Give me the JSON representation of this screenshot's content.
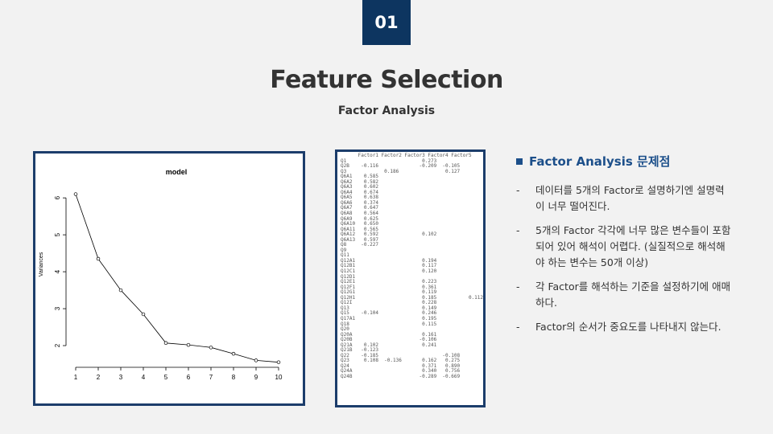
{
  "slide": {
    "number": "01",
    "title": "Feature Selection",
    "subtitle": "Factor Analysis"
  },
  "chart_data": {
    "type": "line",
    "title": "model",
    "xlabel": "",
    "ylabel": "Variances",
    "x": [
      1,
      2,
      3,
      4,
      5,
      6,
      7,
      8,
      9,
      10
    ],
    "values": [
      6.1,
      4.35,
      3.5,
      2.85,
      2.07,
      2.02,
      1.95,
      1.78,
      1.6,
      1.55
    ],
    "xlim": [
      1,
      10
    ],
    "ylim": [
      1.5,
      6.2
    ],
    "xticks": [
      "1",
      "2",
      "3",
      "4",
      "5",
      "6",
      "7",
      "8",
      "9",
      "10"
    ],
    "yticks": [
      "2",
      "3",
      "4",
      "5",
      "6"
    ],
    "grid": false
  },
  "loadings_table": {
    "header": "      Factor1 Factor2 Factor3 Factor4 Factor5",
    "rows": [
      "Q1                          0.273",
      "Q2B    -0.116              -0.209  -0.105",
      "Q3             0.186                0.127",
      "Q6A1    0.585",
      "Q6A2    0.582",
      "Q6A3    0.602",
      "Q6A4    0.674",
      "Q6A5    0.638",
      "Q6A6    0.374",
      "Q6A7    0.647",
      "Q6A8    0.564",
      "Q6A9    0.625",
      "Q6A10   0.650",
      "Q6A11   0.565",
      "Q6A12   0.592               0.102",
      "Q6A13   0.597",
      "Q8     -0.227",
      "Q9",
      "Q11",
      "Q12A1                       0.194",
      "Q12B1                       0.117",
      "Q12C1                       0.120",
      "Q12D1",
      "Q12E1                       0.223",
      "Q12F1                       0.361",
      "Q12G1                       0.119",
      "Q12H1                       0.185           0.112",
      "Q12I                        0.228",
      "Q13                         0.149",
      "Q15    -0.104               0.246",
      "Q17A1                       0.195",
      "Q18                         0.115",
      "Q20",
      "Q20A                        0.161",
      "Q20B                       -0.106",
      "Q21A    0.102               0.241",
      "Q21B   -0.123",
      "Q22    -0.185                      -0.108",
      "Q23     0.108  -0.136       0.162   0.275",
      "Q24                         0.371   0.890",
      "Q24A                        0.340   0.756",
      "Q24B                       -0.289  -0.669"
    ]
  },
  "issues": {
    "heading": "Factor Analysis 문제점",
    "bullet_marker": "-",
    "items": [
      "데이터를 5개의 Factor로 설명하기엔 설명력이 너무 떨어진다.",
      "5개의 Factor 각각에 너무 많은 변수들이 포함되어 있어 해석이 어렵다. (실질적으로 해석해야 하는 변수는 50개 이상)",
      "각 Factor를 해석하는 기준을 설정하기에 애매하다.",
      "Factor의 순서가 중요도를 나타내지 않는다."
    ]
  },
  "colors": {
    "badge": "#0d3560",
    "accent": "#1c4f8a",
    "panel_border": "#1c3d6b"
  }
}
